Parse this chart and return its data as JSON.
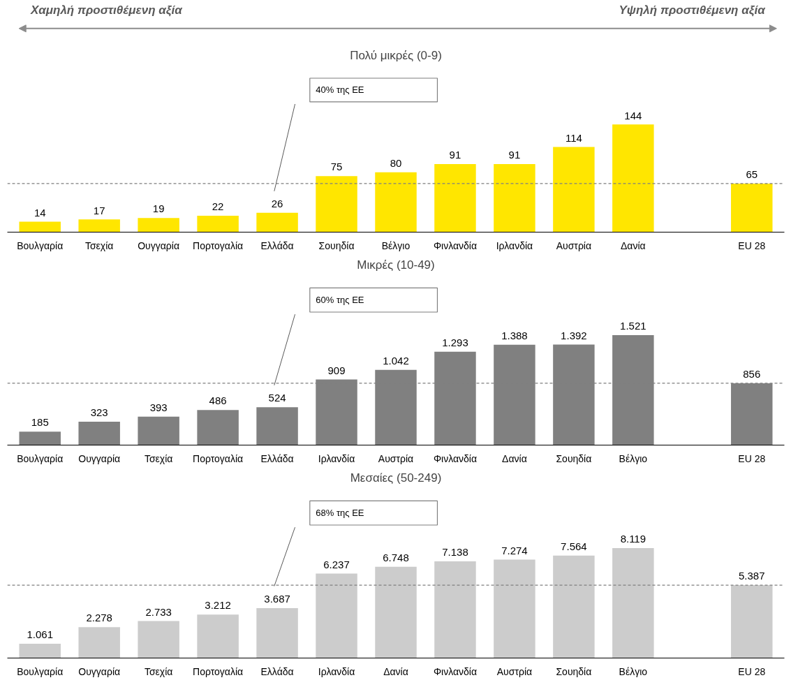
{
  "chart_data": [
    {
      "type": "bar",
      "title": "Πολύ μικρές (0-9)",
      "categories": [
        "Βουλγαρία",
        "Τσεχία",
        "Ουγγαρία",
        "Πορτογαλία",
        "Ελλάδα",
        "Σουηδία",
        "Βέλγιο",
        "Φινλανδία",
        "Ιρλανδία",
        "Αυστρία",
        "Δανία",
        null,
        "EU 28"
      ],
      "values": [
        14,
        17,
        19,
        22,
        26,
        75,
        80,
        91,
        91,
        114,
        144,
        null,
        65
      ],
      "value_labels": [
        "14",
        "17",
        "19",
        "22",
        "26",
        "75",
        "80",
        "91",
        "91",
        "114",
        "144",
        null,
        "65"
      ],
      "color": "#ffe600",
      "ref_lines": [
        {
          "axis": "y",
          "value": 65,
          "color": "#7f7f7f",
          "line_style": "dashed"
        }
      ],
      "annotations": [
        "Χαμηλή προστιθέμενη αξία",
        "Υψηλή προστιθέμενη αξία",
        "40% της ΕΕ"
      ]
    },
    {
      "type": "bar",
      "title": "Μικρές (10-49)",
      "categories": [
        "Βουλγαρία",
        "Ουγγαρία",
        "Τσεχία",
        "Πορτογαλία",
        "Ελλάδα",
        "Ιρλανδία",
        "Αυστρία",
        "Φινλανδία",
        "Δανία",
        "Σουηδία",
        "Βέλγιο",
        null,
        "EU 28"
      ],
      "values": [
        185,
        323,
        393,
        486,
        524,
        909,
        1042,
        1293,
        1388,
        1392,
        1521,
        null,
        856
      ],
      "value_labels": [
        "185",
        "323",
        "393",
        "486",
        "524",
        "909",
        "1.042",
        "1.293",
        "1.388",
        "1.392",
        "1.521",
        null,
        "856"
      ],
      "color": "#808080",
      "ref_lines": [
        {
          "axis": "y",
          "value": 856,
          "color": "#7f7f7f",
          "line_style": "dashed"
        }
      ],
      "annotations": [
        "60% της ΕΕ"
      ]
    },
    {
      "type": "bar",
      "title": "Μεσαίες (50-249)",
      "categories": [
        "Βουλγαρία",
        "Ουγγαρία",
        "Τσεχία",
        "Πορτογαλία",
        "Ελλάδα",
        "Ιρλανδία",
        "Δανία",
        "Φινλανδία",
        "Αυστρία",
        "Σουηδία",
        "Βέλγιο",
        null,
        "EU 28"
      ],
      "values": [
        1061,
        2278,
        2733,
        3212,
        3687,
        6237,
        6748,
        7138,
        7274,
        7564,
        8119,
        null,
        5387
      ],
      "value_labels": [
        "1.061",
        "2.278",
        "2.733",
        "3.212",
        "3.687",
        "6.237",
        "6.748",
        "7.138",
        "7.274",
        "7.564",
        "8.119",
        null,
        "5.387"
      ],
      "color": "#cccccc",
      "ref_lines": [
        {
          "axis": "y",
          "value": 5387,
          "color": "#7f7f7f",
          "line_style": "dashed"
        }
      ],
      "annotations": [
        "68% της ΕΕ"
      ]
    }
  ]
}
